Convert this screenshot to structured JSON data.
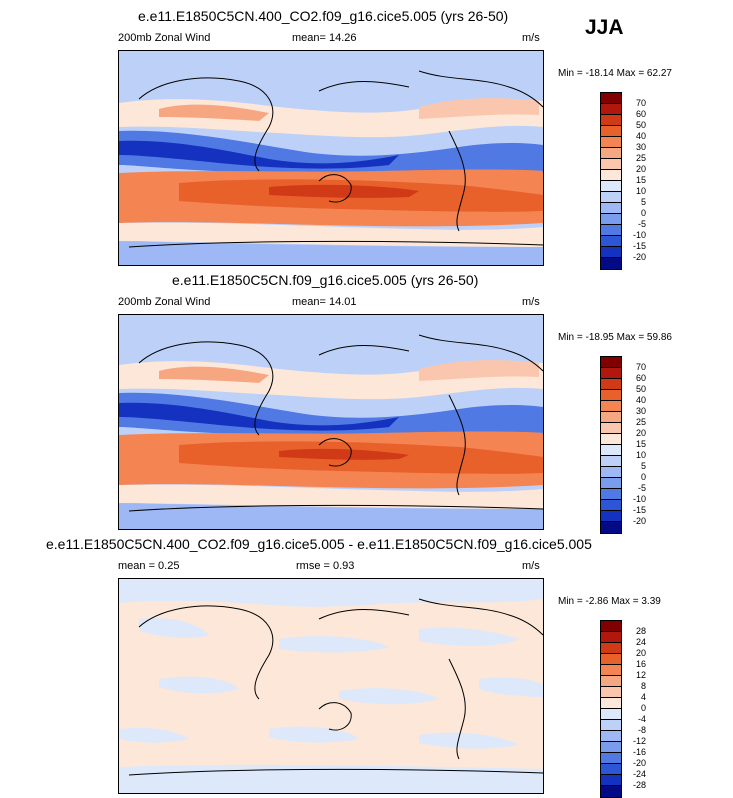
{
  "season": "JJA",
  "panels": [
    {
      "title": "e.e11.E1850C5CN.400_CO2.f09_g16.cice5.005 (yrs 26-50)",
      "left_label": "200mb Zonal Wind",
      "mid_label": "mean=  14.26",
      "units": "m/s",
      "minmax": "Min = -18.14 Max =  62.27",
      "levels": [
        "70",
        "60",
        "50",
        "40",
        "30",
        "25",
        "20",
        "15",
        "10",
        "5",
        "0",
        "-5",
        "-10",
        "-15",
        "-20"
      ]
    },
    {
      "title": "e.e11.E1850C5CN.f09_g16.cice5.005 (yrs 26-50)",
      "left_label": "200mb Zonal Wind",
      "mid_label": "mean=  14.01",
      "units": "m/s",
      "minmax": "Min = -18.95 Max =  59.86",
      "levels": [
        "70",
        "60",
        "50",
        "40",
        "30",
        "25",
        "20",
        "15",
        "10",
        "5",
        "0",
        "-5",
        "-10",
        "-15",
        "-20"
      ]
    },
    {
      "title": "e.e11.E1850C5CN.400_CO2.f09_g16.cice5.005 - e.e11.E1850C5CN.f09_g16.cice5.005",
      "left_label": "mean =   0.25",
      "mid_label": "rmse =   0.93",
      "units": "m/s",
      "minmax": "Min =  -2.86 Max =   3.39",
      "levels": [
        "28",
        "24",
        "20",
        "16",
        "12",
        "8",
        "4",
        "0",
        "-4",
        "-8",
        "-12",
        "-16",
        "-20",
        "-24",
        "-28"
      ]
    }
  ],
  "colors": {
    "wind": [
      "#800000",
      "#b1170d",
      "#d03a16",
      "#e8602a",
      "#f48552",
      "#f7a682",
      "#fac7ae",
      "#fde7d8",
      "#dde8fb",
      "#bdd1f8",
      "#9db8f4",
      "#7a9ced",
      "#5079e3",
      "#2d56d6",
      "#1431bf",
      "#020b85"
    ],
    "diff": [
      "#800000",
      "#b1170d",
      "#d03a16",
      "#e8602a",
      "#f48552",
      "#f7a682",
      "#fac7ae",
      "#fde7d8",
      "#dde8fb",
      "#bdd1f8",
      "#9db8f4",
      "#7a9ced",
      "#5079e3",
      "#2d56d6",
      "#1431bf",
      "#020b85"
    ]
  }
}
